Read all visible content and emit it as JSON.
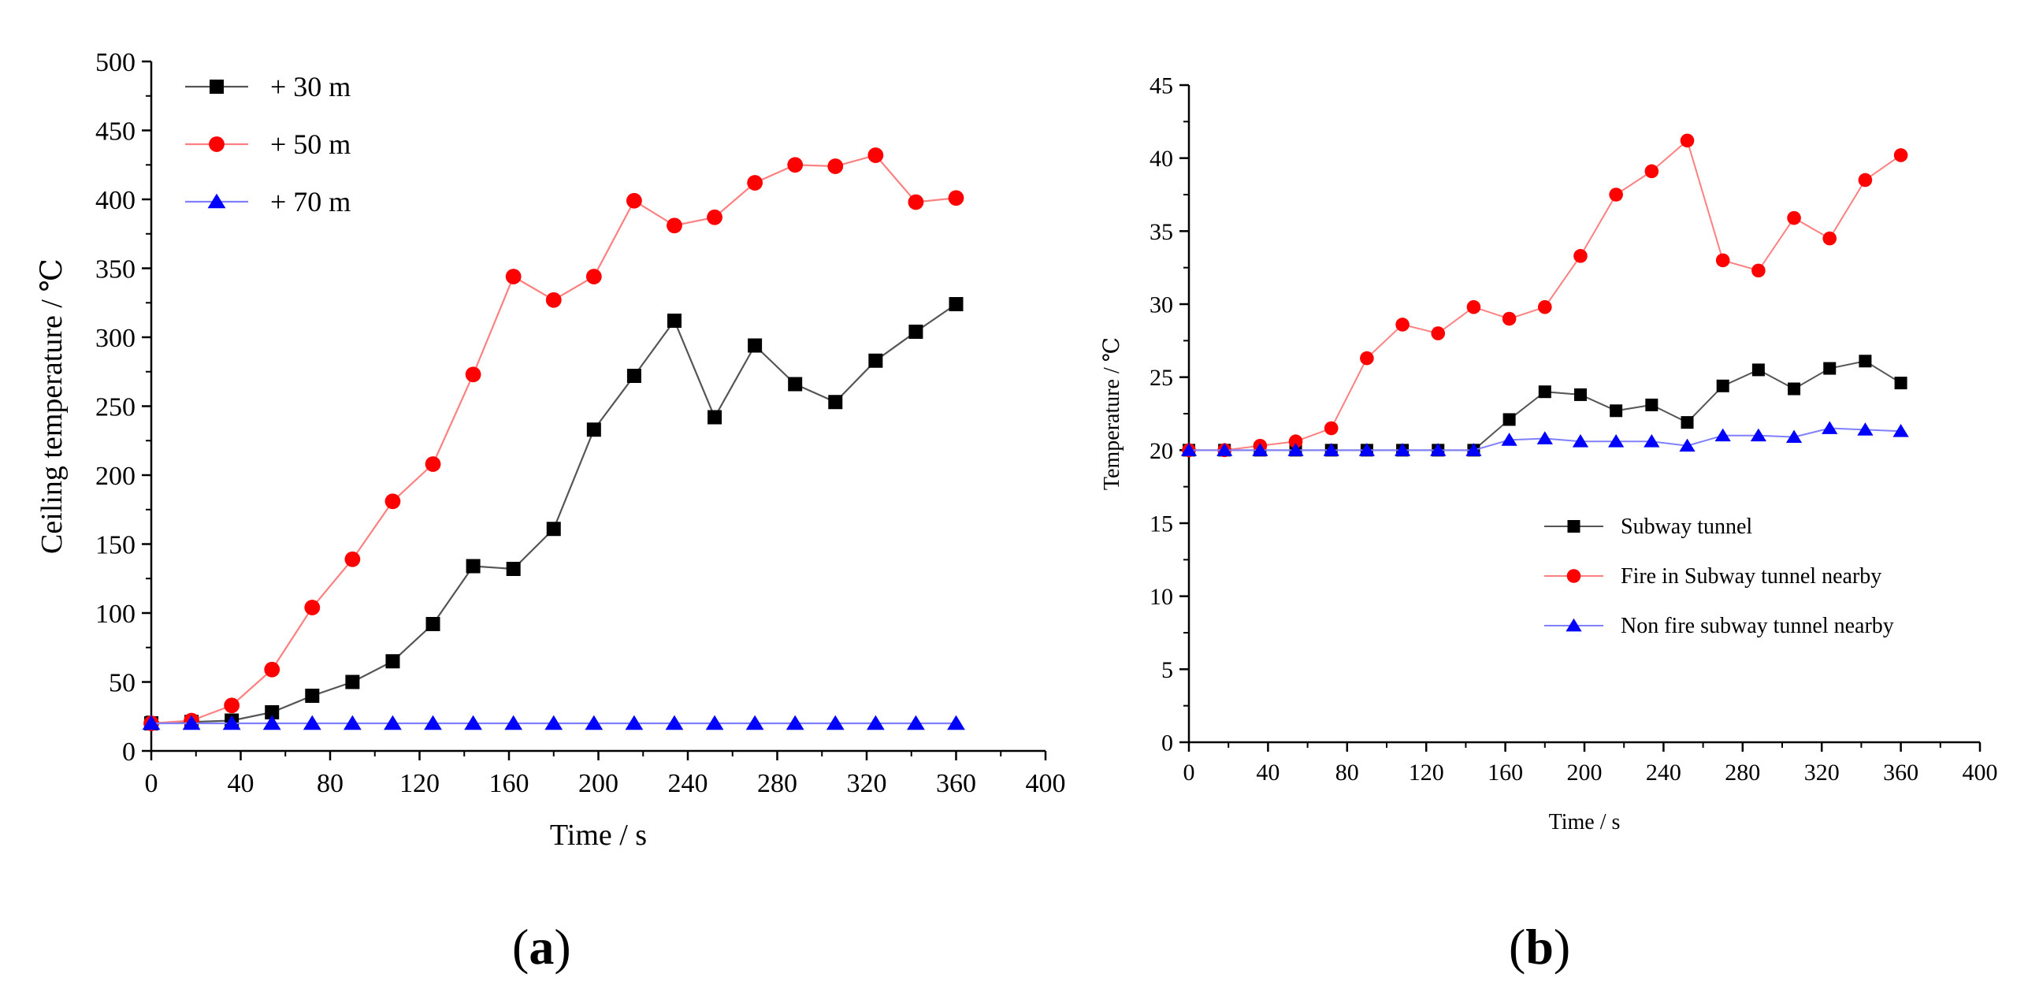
{
  "chart_data": [
    {
      "id": "a",
      "type": "line",
      "panel_label": "a",
      "xlabel": "Time / s",
      "ylabel": "Ceiling temperature / ℃",
      "xlim": [
        0,
        400
      ],
      "ylim": [
        0,
        500
      ],
      "xticks": [
        0,
        40,
        80,
        120,
        160,
        200,
        240,
        280,
        320,
        360,
        400
      ],
      "yticks": [
        0,
        50,
        100,
        150,
        200,
        250,
        300,
        350,
        400,
        450,
        500
      ],
      "legend_position": "top-left",
      "grid": false,
      "x": [
        0,
        18,
        36,
        54,
        72,
        90,
        108,
        126,
        144,
        162,
        180,
        198,
        216,
        234,
        252,
        270,
        288,
        306,
        324,
        342,
        360
      ],
      "series": [
        {
          "name": "+ 30 m",
          "color": "#000000",
          "line_color": "#555555",
          "marker": "square",
          "values": [
            20,
            21,
            22,
            28,
            40,
            50,
            65,
            92,
            134,
            132,
            161,
            233,
            272,
            312,
            242,
            294,
            266,
            253,
            283,
            304,
            324
          ]
        },
        {
          "name": "+ 50 m",
          "color": "#ff0000",
          "line_color": "#ff8080",
          "marker": "circle",
          "values": [
            20,
            22,
            33,
            59,
            104,
            139,
            181,
            208,
            273,
            344,
            327,
            344,
            399,
            381,
            387,
            412,
            425,
            424,
            432,
            398,
            401
          ]
        },
        {
          "name": "+ 70 m",
          "color": "#0000ff",
          "line_color": "#8080ff",
          "marker": "triangle",
          "values": [
            20,
            20,
            20,
            20,
            20,
            20,
            20,
            20,
            20,
            20,
            20,
            20,
            20,
            20,
            20,
            20,
            20,
            20,
            20,
            20,
            20
          ]
        }
      ]
    },
    {
      "id": "b",
      "type": "line",
      "panel_label": "b",
      "xlabel": "Time / s",
      "ylabel": "Temperature / ℃",
      "xlim": [
        0,
        400
      ],
      "ylim": [
        0,
        45
      ],
      "xticks": [
        0,
        40,
        80,
        120,
        160,
        200,
        240,
        280,
        320,
        360,
        400
      ],
      "yticks": [
        0,
        5,
        10,
        15,
        20,
        25,
        30,
        35,
        40,
        45
      ],
      "legend_position": "center-right",
      "grid": false,
      "x": [
        0,
        18,
        36,
        54,
        72,
        90,
        108,
        126,
        144,
        162,
        180,
        198,
        216,
        234,
        252,
        270,
        288,
        306,
        324,
        342,
        360
      ],
      "series": [
        {
          "name": "Subway tunnel",
          "color": "#000000",
          "line_color": "#555555",
          "marker": "square",
          "values": [
            20,
            20,
            20,
            20,
            20,
            20,
            20,
            20,
            20,
            22.1,
            24,
            23.8,
            22.7,
            23.1,
            21.9,
            24.4,
            25.5,
            24.2,
            25.6,
            26.1,
            24.6
          ]
        },
        {
          "name": "Fire in Subway tunnel nearby",
          "color": "#ff0000",
          "line_color": "#ff8080",
          "marker": "circle",
          "values": [
            20,
            20,
            20.3,
            20.6,
            21.5,
            26.3,
            28.6,
            28,
            29.8,
            29,
            29.8,
            33.3,
            37.5,
            39.1,
            41.2,
            33,
            32.3,
            35.9,
            34.5,
            38.5,
            40.2
          ]
        },
        {
          "name": "Non fire subway tunnel nearby",
          "color": "#0000ff",
          "line_color": "#8080ff",
          "marker": "triangle",
          "values": [
            20,
            20,
            20,
            20,
            20,
            20,
            20,
            20,
            20,
            20.7,
            20.8,
            20.6,
            20.6,
            20.6,
            20.3,
            21,
            21,
            20.9,
            21.5,
            21.4,
            21.3
          ]
        }
      ]
    }
  ]
}
